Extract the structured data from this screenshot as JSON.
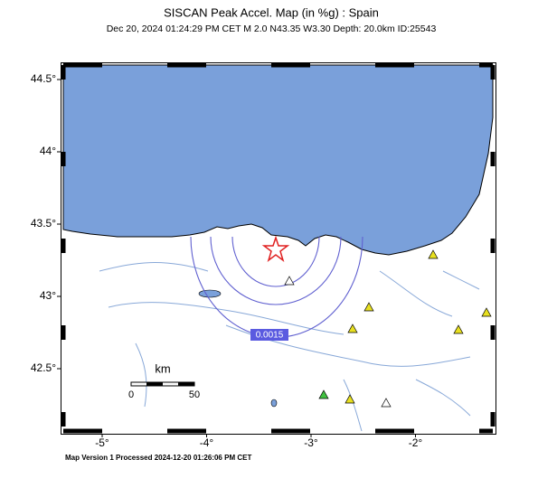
{
  "map": {
    "title": "SISCAN Peak Accel. Map (in %g) : Spain",
    "subtitle": "Dec 20, 2024 01:24:29 PM CET   M 2.0   N43.35 W3.30   Depth: 20.0km   ID:25543",
    "xticks": [
      {
        "value": -5,
        "label": "-5°"
      },
      {
        "value": -4,
        "label": "-4°"
      },
      {
        "value": -3,
        "label": "-3°"
      },
      {
        "value": -2,
        "label": "-2°"
      }
    ],
    "yticks": [
      {
        "value": 44.5,
        "label": "44.5°"
      },
      {
        "value": 44,
        "label": "44°"
      },
      {
        "value": 43.5,
        "label": "43.5°"
      },
      {
        "value": 43,
        "label": "43°"
      },
      {
        "value": 42.5,
        "label": "42.5°"
      }
    ],
    "contour_label": "0.0015",
    "scale_bar": {
      "unit": "km",
      "ticks": [
        0,
        50
      ]
    },
    "footer": "Map Version 1 Processed 2024-12-20 01:26:06 PM CET"
  }
}
